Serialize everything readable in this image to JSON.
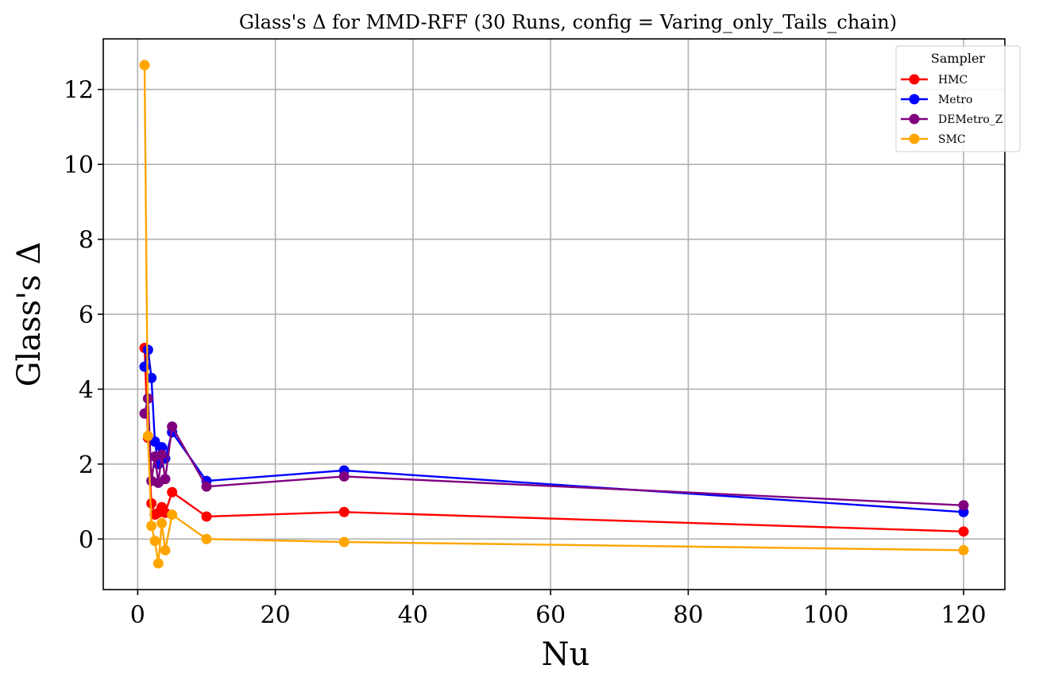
{
  "chart_data": {
    "type": "line",
    "title": "Glass's Δ for MMD-RFF (30 Runs, config = Varing_only_Tails_chain)",
    "xlabel": "Nu",
    "ylabel": "Glass's Δ",
    "xlim": [
      -5,
      126
    ],
    "ylim": [
      -1.35,
      13.35
    ],
    "xticks": [
      0,
      20,
      40,
      60,
      80,
      100,
      120
    ],
    "yticks": [
      0,
      2,
      4,
      6,
      8,
      10,
      12
    ],
    "grid": true,
    "legend": {
      "title": "Sampler",
      "position": "top-right"
    },
    "x": [
      1,
      1.5,
      2,
      2.5,
      3,
      3.5,
      4,
      5,
      10,
      30,
      120
    ],
    "series": [
      {
        "name": "HMC",
        "color": "#ff0000",
        "values": [
          5.1,
          2.7,
          0.95,
          0.65,
          0.7,
          0.85,
          0.7,
          1.25,
          0.6,
          0.72,
          0.2
        ]
      },
      {
        "name": "Metro",
        "color": "#0000ff",
        "values": [
          4.6,
          5.05,
          4.3,
          2.6,
          2.0,
          2.45,
          2.15,
          2.85,
          1.55,
          1.83,
          0.72
        ]
      },
      {
        "name": "DEMetro_Z",
        "color": "#800080",
        "values": [
          3.35,
          3.75,
          1.55,
          2.2,
          1.5,
          2.25,
          1.6,
          3.0,
          1.4,
          1.67,
          0.9
        ]
      },
      {
        "name": "SMC",
        "color": "#ffa500",
        "values": [
          12.65,
          2.75,
          0.35,
          -0.05,
          -0.65,
          0.42,
          -0.3,
          0.65,
          0.0,
          -0.08,
          -0.3
        ]
      }
    ]
  }
}
